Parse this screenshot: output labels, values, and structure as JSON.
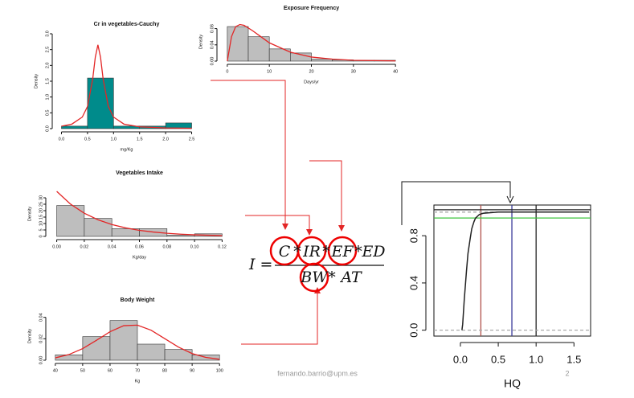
{
  "chart_data": [
    {
      "type": "histogram",
      "title": "Cr in vegetables-Cauchy",
      "xlabel": "mg/Kg",
      "ylabel": "Density",
      "color": "#008b8b",
      "bins": [
        0,
        0.5,
        1,
        1.5,
        2,
        2.5
      ],
      "counts": [
        0.08,
        1.6,
        0.08,
        0.08,
        0.18
      ],
      "curve": {
        "color": "#e32626",
        "x": [
          0,
          0.2,
          0.4,
          0.5,
          0.6,
          0.65,
          0.7,
          0.75,
          0.8,
          0.9,
          1.0,
          1.2,
          1.5,
          2.0,
          2.5
        ],
        "values": [
          0.076,
          0.144,
          0.366,
          0.7,
          1.57,
          2.26,
          2.65,
          2.26,
          1.57,
          0.7,
          0.366,
          0.144,
          0.058,
          0.022,
          0.012
        ]
      },
      "xlim": [
        -0.1,
        2.6
      ],
      "ylim": [
        0,
        3.0
      ],
      "xticks": [
        {
          "value": 0,
          "label": "0.0"
        },
        {
          "value": 0.5,
          "label": "0.5"
        },
        {
          "value": 1,
          "label": "1.0"
        },
        {
          "value": 1.5,
          "label": "1.5"
        },
        {
          "value": 2,
          "label": "2.0"
        },
        {
          "value": 2.5,
          "label": "2.5"
        }
      ],
      "yticks": [
        {
          "value": 0,
          "label": "0.0"
        },
        {
          "value": 0.5,
          "label": "0.5"
        },
        {
          "value": 1,
          "label": "1.0"
        },
        {
          "value": 1.5,
          "label": "1.5"
        },
        {
          "value": 2,
          "label": "2.0"
        },
        {
          "value": 2.5,
          "label": "2.5"
        },
        {
          "value": 3,
          "label": "3.0"
        }
      ]
    },
    {
      "type": "histogram",
      "title": "Exposure Frequency",
      "xlabel": "Days/yr",
      "ylabel": "Density",
      "color": "#bebebe",
      "bins": [
        0,
        5,
        10,
        15,
        20,
        25,
        30,
        35,
        40
      ],
      "counts": [
        0.085,
        0.06,
        0.03,
        0.02,
        0.005,
        0.003,
        0.002,
        0.002
      ],
      "curve": {
        "color": "#e32626",
        "x": [
          0,
          1,
          2,
          3,
          4,
          6,
          8,
          10,
          15,
          20,
          25,
          30,
          40
        ],
        "values": [
          0,
          0.06,
          0.085,
          0.09,
          0.088,
          0.075,
          0.06,
          0.045,
          0.022,
          0.01,
          0.005,
          0.002,
          0.0005
        ]
      },
      "xlim": [
        -1.5,
        41.5
      ],
      "ylim": [
        0,
        0.095
      ],
      "xticks": [
        0,
        10,
        20,
        30,
        40
      ],
      "yticks": [
        {
          "value": 0,
          "label": "0.00"
        },
        {
          "value": 0.04,
          "label": "0.04"
        },
        {
          "value": 0.08,
          "label": "0.08"
        }
      ]
    },
    {
      "type": "histogram",
      "title": "Vegetables Intake",
      "xlabel": "Kg/day",
      "ylabel": "Density",
      "color": "#bebebe",
      "bins": [
        0,
        0.02,
        0.04,
        0.06,
        0.08,
        0.1,
        0.12
      ],
      "counts": [
        24,
        14,
        6,
        6,
        1,
        2
      ],
      "curve": {
        "color": "#e32626",
        "x": [
          0,
          0.01,
          0.02,
          0.03,
          0.04,
          0.05,
          0.06,
          0.07,
          0.08,
          0.09,
          0.1,
          0.11,
          0.12
        ],
        "values": [
          35,
          25.1,
          18.0,
          12.9,
          9.2,
          6.6,
          4.7,
          3.4,
          2.4,
          1.7,
          1.2,
          0.9,
          0.6
        ]
      },
      "xlim": [
        -0.005,
        0.125
      ],
      "ylim": [
        0,
        35
      ],
      "xticks": [
        {
          "value": 0,
          "label": "0.00"
        },
        {
          "value": 0.02,
          "label": "0.02"
        },
        {
          "value": 0.04,
          "label": "0.04"
        },
        {
          "value": 0.06,
          "label": "0.06"
        },
        {
          "value": 0.08,
          "label": "0.08"
        },
        {
          "value": 0.1,
          "label": "0.10"
        },
        {
          "value": 0.12,
          "label": "0.12"
        }
      ],
      "yticks": [
        0,
        5,
        10,
        15,
        20,
        25,
        30
      ]
    },
    {
      "type": "histogram",
      "title": "Body Weight",
      "xlabel": "Kg",
      "ylabel": "Density",
      "color": "#bebebe",
      "bins": [
        40,
        50,
        60,
        70,
        80,
        90,
        100
      ],
      "counts": [
        0.005,
        0.022,
        0.037,
        0.015,
        0.01,
        0.005
      ],
      "curve": {
        "color": "#e32626",
        "x": [
          40,
          45,
          50,
          55,
          60,
          65,
          70,
          75,
          80,
          85,
          90,
          95,
          100
        ],
        "values": [
          0.0022,
          0.0053,
          0.0108,
          0.0185,
          0.0266,
          0.0322,
          0.0327,
          0.028,
          0.0201,
          0.0122,
          0.0062,
          0.0026,
          0.0009
        ]
      },
      "xlim": [
        38,
        102
      ],
      "ylim": [
        0,
        0.045
      ],
      "xticks": [
        40,
        50,
        60,
        70,
        80,
        90,
        100
      ],
      "yticks": [
        {
          "value": 0,
          "label": "0.00"
        },
        {
          "value": 0.02,
          "label": "0.02"
        },
        {
          "value": 0.04,
          "label": "0.04"
        }
      ]
    },
    {
      "type": "ecdf",
      "xlabel": "HQ",
      "color": "#222222",
      "x": [
        0.02,
        0.03,
        0.05,
        0.08,
        0.1,
        0.13,
        0.15,
        0.18,
        0.2,
        0.25,
        0.3,
        0.5,
        1.0,
        1.7
      ],
      "values": [
        0,
        0.05,
        0.25,
        0.5,
        0.65,
        0.78,
        0.86,
        0.92,
        0.95,
        0.98,
        0.99,
        1.0,
        1.0,
        1.0
      ],
      "ref_lines": [
        {
          "axis": "x",
          "value": 0.27,
          "color": "#b0504a"
        },
        {
          "axis": "x",
          "value": 0.68,
          "color": "#3a3a9a"
        },
        {
          "axis": "x",
          "value": 1.0,
          "color": "#222222"
        },
        {
          "axis": "y",
          "value": 0,
          "color": "#aaaaaa",
          "dashed": true
        },
        {
          "axis": "y",
          "value": 1.0,
          "color": "#aaaaaa",
          "dashed": true
        },
        {
          "axis": "y",
          "value": 0.95,
          "color": "#3cc43c"
        },
        {
          "axis": "y",
          "value": 1.02,
          "color": "#222222"
        }
      ],
      "xlim": [
        -0.35,
        1.72
      ],
      "ylim": [
        -0.05,
        1.06
      ],
      "xticks": [
        {
          "value": 0,
          "label": "0.0"
        },
        {
          "value": 0.5,
          "label": "0.5"
        },
        {
          "value": 1,
          "label": "1.0"
        },
        {
          "value": 1.5,
          "label": "1.5"
        }
      ],
      "yticks": [
        {
          "value": 0,
          "label": "0.0"
        },
        {
          "value": 0.4,
          "label": "0.4"
        },
        {
          "value": 0.8,
          "label": "0.8"
        }
      ]
    }
  ],
  "formula": {
    "lhs": "I =",
    "numerator": [
      "C",
      "*",
      "IR",
      "*",
      "EF",
      "*",
      "ED"
    ],
    "denominator": [
      "BW",
      "*",
      "AT"
    ]
  },
  "footer": {
    "email": "fernando.barrio@upm.es",
    "page": "2"
  }
}
